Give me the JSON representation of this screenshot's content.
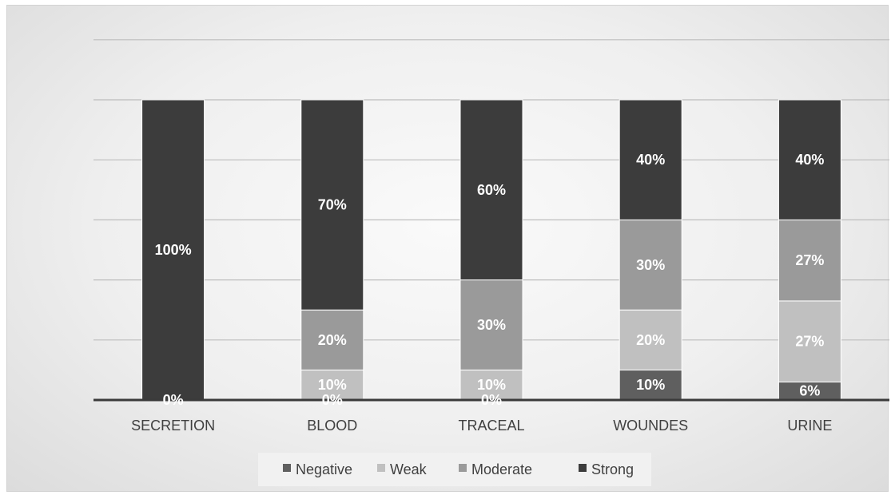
{
  "chart_data": {
    "type": "bar",
    "stacked": true,
    "categories": [
      "SECRETION",
      "BLOOD",
      "TRACEAL",
      "WOUNDES",
      "URINE"
    ],
    "series": [
      {
        "name": "Negative",
        "color": "#5f5f5f",
        "values": [
          0,
          0,
          0,
          10,
          6
        ],
        "labels": [
          "0%",
          "0%",
          "0%",
          "10%",
          "6%"
        ]
      },
      {
        "name": "Weak",
        "color": "#c0c0c0",
        "values": [
          0,
          10,
          10,
          20,
          27
        ],
        "labels": [
          "",
          "10%",
          "10%",
          "20%",
          "27%"
        ]
      },
      {
        "name": "Moderate",
        "color": "#9a9a9a",
        "values": [
          0,
          20,
          30,
          30,
          27
        ],
        "labels": [
          "",
          "20%",
          "30%",
          "30%",
          "27%"
        ]
      },
      {
        "name": "Strong",
        "color": "#3c3c3c",
        "values": [
          100,
          70,
          60,
          40,
          40
        ],
        "labels": [
          "100%",
          "70%",
          "60%",
          "40%",
          "40%"
        ]
      }
    ],
    "ylim": [
      0,
      120
    ],
    "gridlines": true,
    "legend_position": "bottom-center"
  }
}
